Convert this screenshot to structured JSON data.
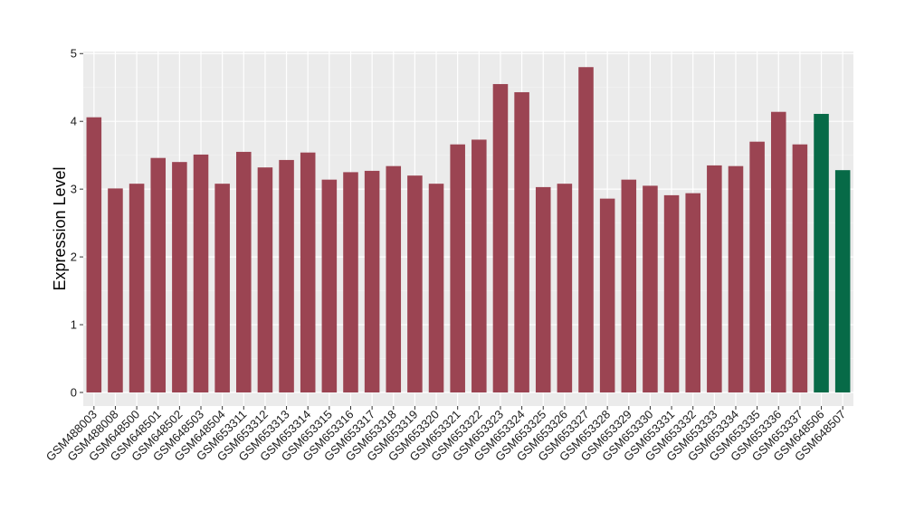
{
  "chart_data": {
    "type": "bar",
    "title": "",
    "xlabel": "",
    "ylabel": "Expression Level",
    "ylim": [
      -0.2,
      5.03
    ],
    "yticks": [
      0,
      1,
      2,
      3,
      4,
      5
    ],
    "grid": true,
    "legend": "none",
    "categories": [
      "GSM488003",
      "GSM488008",
      "GSM648500",
      "GSM648501",
      "GSM648502",
      "GSM648503",
      "GSM648504",
      "GSM653311",
      "GSM653312",
      "GSM653313",
      "GSM653314",
      "GSM653315",
      "GSM653316",
      "GSM653317",
      "GSM653318",
      "GSM653319",
      "GSM653320",
      "GSM653321",
      "GSM653322",
      "GSM653323",
      "GSM653324",
      "GSM653325",
      "GSM653326",
      "GSM653327",
      "GSM653328",
      "GSM653329",
      "GSM653330",
      "GSM653331",
      "GSM653332",
      "GSM653333",
      "GSM653334",
      "GSM653335",
      "GSM653336",
      "GSM653337",
      "GSM648506",
      "GSM648507"
    ],
    "values": [
      4.06,
      3.01,
      3.08,
      3.46,
      3.4,
      3.51,
      3.08,
      3.55,
      3.32,
      3.43,
      3.54,
      3.14,
      3.25,
      3.27,
      3.34,
      3.2,
      3.08,
      3.66,
      3.73,
      4.55,
      4.43,
      3.03,
      3.08,
      4.8,
      2.86,
      3.14,
      3.05,
      2.91,
      2.94,
      3.35,
      3.34,
      3.7,
      4.14,
      3.66,
      4.11,
      3.28
    ],
    "bar_colors": [
      "#9b4452",
      "#9b4452",
      "#9b4452",
      "#9b4452",
      "#9b4452",
      "#9b4452",
      "#9b4452",
      "#9b4452",
      "#9b4452",
      "#9b4452",
      "#9b4452",
      "#9b4452",
      "#9b4452",
      "#9b4452",
      "#9b4452",
      "#9b4452",
      "#9b4452",
      "#9b4452",
      "#9b4452",
      "#9b4452",
      "#9b4452",
      "#9b4452",
      "#9b4452",
      "#9b4452",
      "#9b4452",
      "#9b4452",
      "#9b4452",
      "#9b4452",
      "#9b4452",
      "#9b4452",
      "#9b4452",
      "#9b4452",
      "#9b4452",
      "#9b4452",
      "#076a47",
      "#076a47"
    ],
    "colors": {
      "panel_background": "#ebebeb",
      "grid_major": "#ffffff",
      "grid_minor": "#f4f4f4",
      "axis_tick": "#333333"
    }
  }
}
